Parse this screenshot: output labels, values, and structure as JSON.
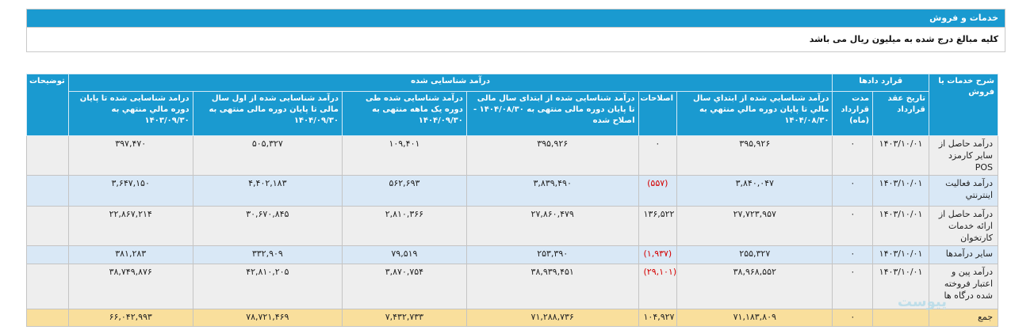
{
  "section_title": "خدمات و فروش",
  "note": "کلیه مبالغ درج شده به میلیون ریال می باشد",
  "headers": {
    "description": "شرح خدمات یا فروش",
    "contracts_group": "قرارد دادها",
    "contract_date": "تاریخ عقد قرارداد",
    "contract_duration": "مدت قرارداد (ماه)",
    "recognized_group": "درآمد شناسایی شده",
    "col_prior_period": "درآمد شناسایي شده از ابتداي سال مالي تا پایان دوره مالي منتهي به ۱۴۰۴/۰۸/۳۰",
    "col_adjustments": "اصلاحات",
    "col_adjusted": "درآمد شناسایی شده از ابتدای سال مالی تا پایان دوره مالی منتهی به ۱۴۰۴/۰۸/۳۰ - اصلاح شده",
    "col_one_month": "درآمد شناسایی شده طی دوره یک ماهه منتهی به ۱۴۰۴/۰۹/۳۰",
    "col_ytd": "درآمد شناسایی شده از اول سال مالی تا پایان دوره مالی منتهی به ۱۴۰۴/۰۹/۳۰",
    "col_last_year": "درامد شناسایی شده تا پایان دوره مالي منتهي به ۱۴۰۳/۰۹/۳۰",
    "explanations": "توضیحات"
  },
  "rows": [
    {
      "label": "درآمد حاصل از سایر کارمزد POS",
      "date": "۱۴۰۳/۱۰/۰۱",
      "duration": "۰",
      "prior": "۳۹۵,۹۲۶",
      "adj": "۰",
      "adj_neg": false,
      "adjusted": "۳۹۵,۹۲۶",
      "month": "۱۰۹,۴۰۱",
      "ytd": "۵۰۵,۳۲۷",
      "last_year": "۳۹۷,۴۷۰"
    },
    {
      "label": "درآمد فعالیت اینترنتي",
      "date": "۱۴۰۳/۱۰/۰۱",
      "duration": "۰",
      "prior": "۳,۸۴۰,۰۴۷",
      "adj": "(۵۵۷)",
      "adj_neg": true,
      "adjusted": "۳,۸۳۹,۴۹۰",
      "month": "۵۶۲,۶۹۳",
      "ytd": "۴,۴۰۲,۱۸۳",
      "last_year": "۳,۶۴۷,۱۵۰"
    },
    {
      "label": "درآمد حاصل از ارائه خدمات کارتخوان",
      "date": "۱۴۰۳/۱۰/۰۱",
      "duration": "۰",
      "prior": "۲۷,۷۲۳,۹۵۷",
      "adj": "۱۳۶,۵۲۲",
      "adj_neg": false,
      "adjusted": "۲۷,۸۶۰,۴۷۹",
      "month": "۲,۸۱۰,۳۶۶",
      "ytd": "۳۰,۶۷۰,۸۴۵",
      "last_year": "۲۲,۸۶۷,۲۱۴"
    },
    {
      "label": "سایر درآمدها",
      "date": "۱۴۰۳/۱۰/۰۱",
      "duration": "۰",
      "prior": "۲۵۵,۳۲۷",
      "adj": "(۱,۹۳۷)",
      "adj_neg": true,
      "adjusted": "۲۵۳,۳۹۰",
      "month": "۷۹,۵۱۹",
      "ytd": "۳۳۲,۹۰۹",
      "last_year": "۳۸۱,۲۸۳"
    },
    {
      "label": "درآمد پین و اعتبار فروخته شده درگاه ها",
      "date": "۱۴۰۳/۱۰/۰۱",
      "duration": "۰",
      "prior": "۳۸,۹۶۸,۵۵۲",
      "adj": "(۲۹,۱۰۱)",
      "adj_neg": true,
      "adjusted": "۳۸,۹۳۹,۴۵۱",
      "month": "۳,۸۷۰,۷۵۴",
      "ytd": "۴۲,۸۱۰,۲۰۵",
      "last_year": "۳۸,۷۴۹,۸۷۶"
    }
  ],
  "total": {
    "label": "جمع",
    "duration": "۰",
    "prior": "۷۱,۱۸۳,۸۰۹",
    "adj": "۱۰۴,۹۲۷",
    "adjusted": "۷۱,۲۸۸,۷۳۶",
    "month": "۷,۴۳۲,۷۳۳",
    "ytd": "۷۸,۷۲۱,۴۶۹",
    "last_year": "۶۶,۰۴۲,۹۹۳"
  },
  "watermark": "پیوست",
  "colors": {
    "header": "#1a9ad0",
    "row_gray": "#eeeeee",
    "row_blue": "#d9e8f6",
    "total": "#f9df9c",
    "negative": "#d40000"
  }
}
